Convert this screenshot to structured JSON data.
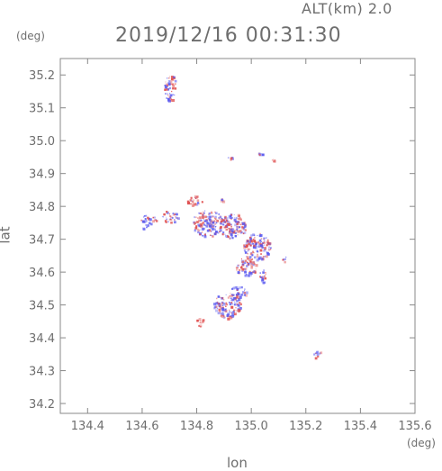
{
  "header": {
    "altitude_label": "ALT(km) 2.0",
    "timestamp": "2019/12/16 00:31:30"
  },
  "chart_data": {
    "type": "heatmap",
    "title": "2019/12/16 00:31:30",
    "xlabel": "lon",
    "ylabel": "lat",
    "x_unit": "(deg)",
    "y_unit": "(deg)",
    "xlim": [
      134.3,
      135.6
    ],
    "ylim": [
      34.17,
      35.25
    ],
    "x_ticks": [
      134.4,
      134.6,
      134.8,
      135.0,
      135.2,
      135.4,
      135.6
    ],
    "x_tick_labels": [
      "134.4",
      "134.6",
      "134.8",
      "135.0",
      "135.2",
      "135.4",
      "135.6"
    ],
    "y_ticks": [
      34.2,
      34.3,
      34.4,
      34.5,
      34.6,
      34.7,
      34.8,
      34.9,
      35.0,
      35.1,
      35.2
    ],
    "y_tick_labels": [
      "34.2",
      "34.3",
      "34.4",
      "34.5",
      "34.6",
      "34.7",
      "34.8",
      "34.9",
      "35.0",
      "35.1",
      "35.2"
    ],
    "grid": false,
    "colors": {
      "positive": "#e05050",
      "negative": "#5a5af0",
      "axis": "#888888"
    },
    "echo_regions": [
      {
        "lon": 134.7,
        "lat": 35.16,
        "r_lon": 0.02,
        "r_lat": 0.04,
        "pattern": "mixed"
      },
      {
        "lon": 134.71,
        "lat": 35.19,
        "r_lon": 0.015,
        "r_lat": 0.01,
        "pattern": "mixed"
      },
      {
        "lon": 134.92,
        "lat": 34.95,
        "r_lon": 0.008,
        "r_lat": 0.008,
        "pattern": "negative"
      },
      {
        "lon": 135.03,
        "lat": 34.96,
        "r_lon": 0.01,
        "r_lat": 0.005,
        "pattern": "negative"
      },
      {
        "lon": 135.08,
        "lat": 34.94,
        "r_lon": 0.008,
        "r_lat": 0.005,
        "pattern": "positive"
      },
      {
        "lon": 134.79,
        "lat": 34.82,
        "r_lon": 0.03,
        "r_lat": 0.015,
        "pattern": "positive"
      },
      {
        "lon": 134.62,
        "lat": 34.76,
        "r_lon": 0.03,
        "r_lat": 0.015,
        "pattern": "mixed"
      },
      {
        "lon": 134.61,
        "lat": 34.74,
        "r_lon": 0.012,
        "r_lat": 0.01,
        "pattern": "negative"
      },
      {
        "lon": 134.7,
        "lat": 34.77,
        "r_lon": 0.03,
        "r_lat": 0.02,
        "pattern": "mixed"
      },
      {
        "lon": 134.84,
        "lat": 34.75,
        "r_lon": 0.06,
        "r_lat": 0.04,
        "pattern": "mixed"
      },
      {
        "lon": 134.93,
        "lat": 34.74,
        "r_lon": 0.05,
        "r_lat": 0.04,
        "pattern": "mixed"
      },
      {
        "lon": 135.02,
        "lat": 34.68,
        "r_lon": 0.05,
        "r_lat": 0.04,
        "pattern": "mixed"
      },
      {
        "lon": 134.98,
        "lat": 34.62,
        "r_lon": 0.04,
        "r_lat": 0.03,
        "pattern": "mixed"
      },
      {
        "lon": 135.04,
        "lat": 34.59,
        "r_lon": 0.015,
        "r_lat": 0.02,
        "pattern": "mixed"
      },
      {
        "lon": 134.91,
        "lat": 34.5,
        "r_lon": 0.05,
        "r_lat": 0.04,
        "pattern": "mixed"
      },
      {
        "lon": 134.95,
        "lat": 34.54,
        "r_lon": 0.03,
        "r_lat": 0.02,
        "pattern": "mixed"
      },
      {
        "lon": 134.81,
        "lat": 34.45,
        "r_lon": 0.012,
        "r_lat": 0.015,
        "pattern": "positive"
      },
      {
        "lon": 135.12,
        "lat": 34.64,
        "r_lon": 0.01,
        "r_lat": 0.01,
        "pattern": "negative"
      },
      {
        "lon": 135.24,
        "lat": 34.35,
        "r_lon": 0.015,
        "r_lat": 0.012,
        "pattern": "negative"
      },
      {
        "lon": 134.89,
        "lat": 34.82,
        "r_lon": 0.006,
        "r_lat": 0.006,
        "pattern": "positive"
      }
    ]
  }
}
